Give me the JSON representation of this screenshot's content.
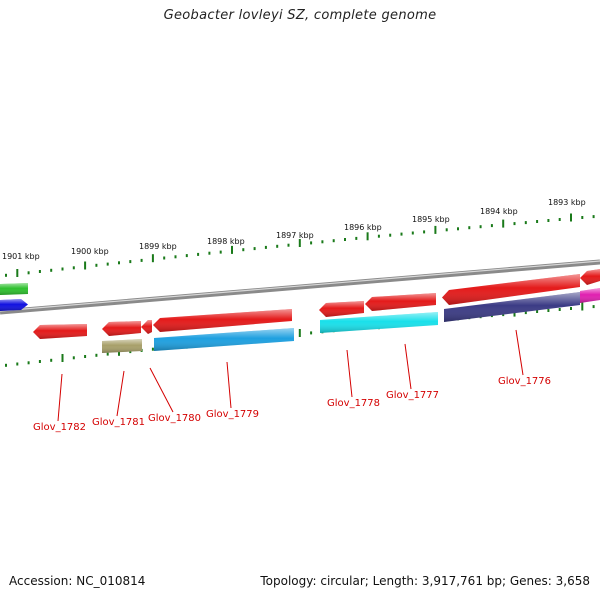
{
  "title": "Geobacter lovleyi SZ, complete genome",
  "footer": {
    "accession": "Accession: NC_010814",
    "topology": "Topology: circular; Length: 3,917,761 bp; Genes: 3,658"
  },
  "colors": {
    "backbone": "#8a8a8a",
    "tick": "#1a7a1a",
    "label": "#d40000",
    "gene_red": "#e41a1a",
    "gene_cyan": "#19e0ea",
    "gene_blue": "#1ea0e0",
    "gene_navy": "#3b3b85",
    "gene_olive": "#a8a06a",
    "gene_green": "#2ec02e",
    "gene_darkblue": "#1010e0",
    "gene_magenta": "#e020b0"
  },
  "ticks": [
    {
      "label": "1901 kbp"
    },
    {
      "label": "1900 kbp"
    },
    {
      "label": "1899 kbp"
    },
    {
      "label": "1898 kbp"
    },
    {
      "label": "1897 kbp"
    },
    {
      "label": "1896 kbp"
    },
    {
      "label": "1895 kbp"
    },
    {
      "label": "1894 kbp"
    },
    {
      "label": "1893 kbp"
    }
  ],
  "gene_labels": [
    "Glov_1782",
    "Glov_1781",
    "Glov_1780",
    "Glov_1779",
    "Glov_1778",
    "Glov_1777",
    "Glov_1776"
  ]
}
